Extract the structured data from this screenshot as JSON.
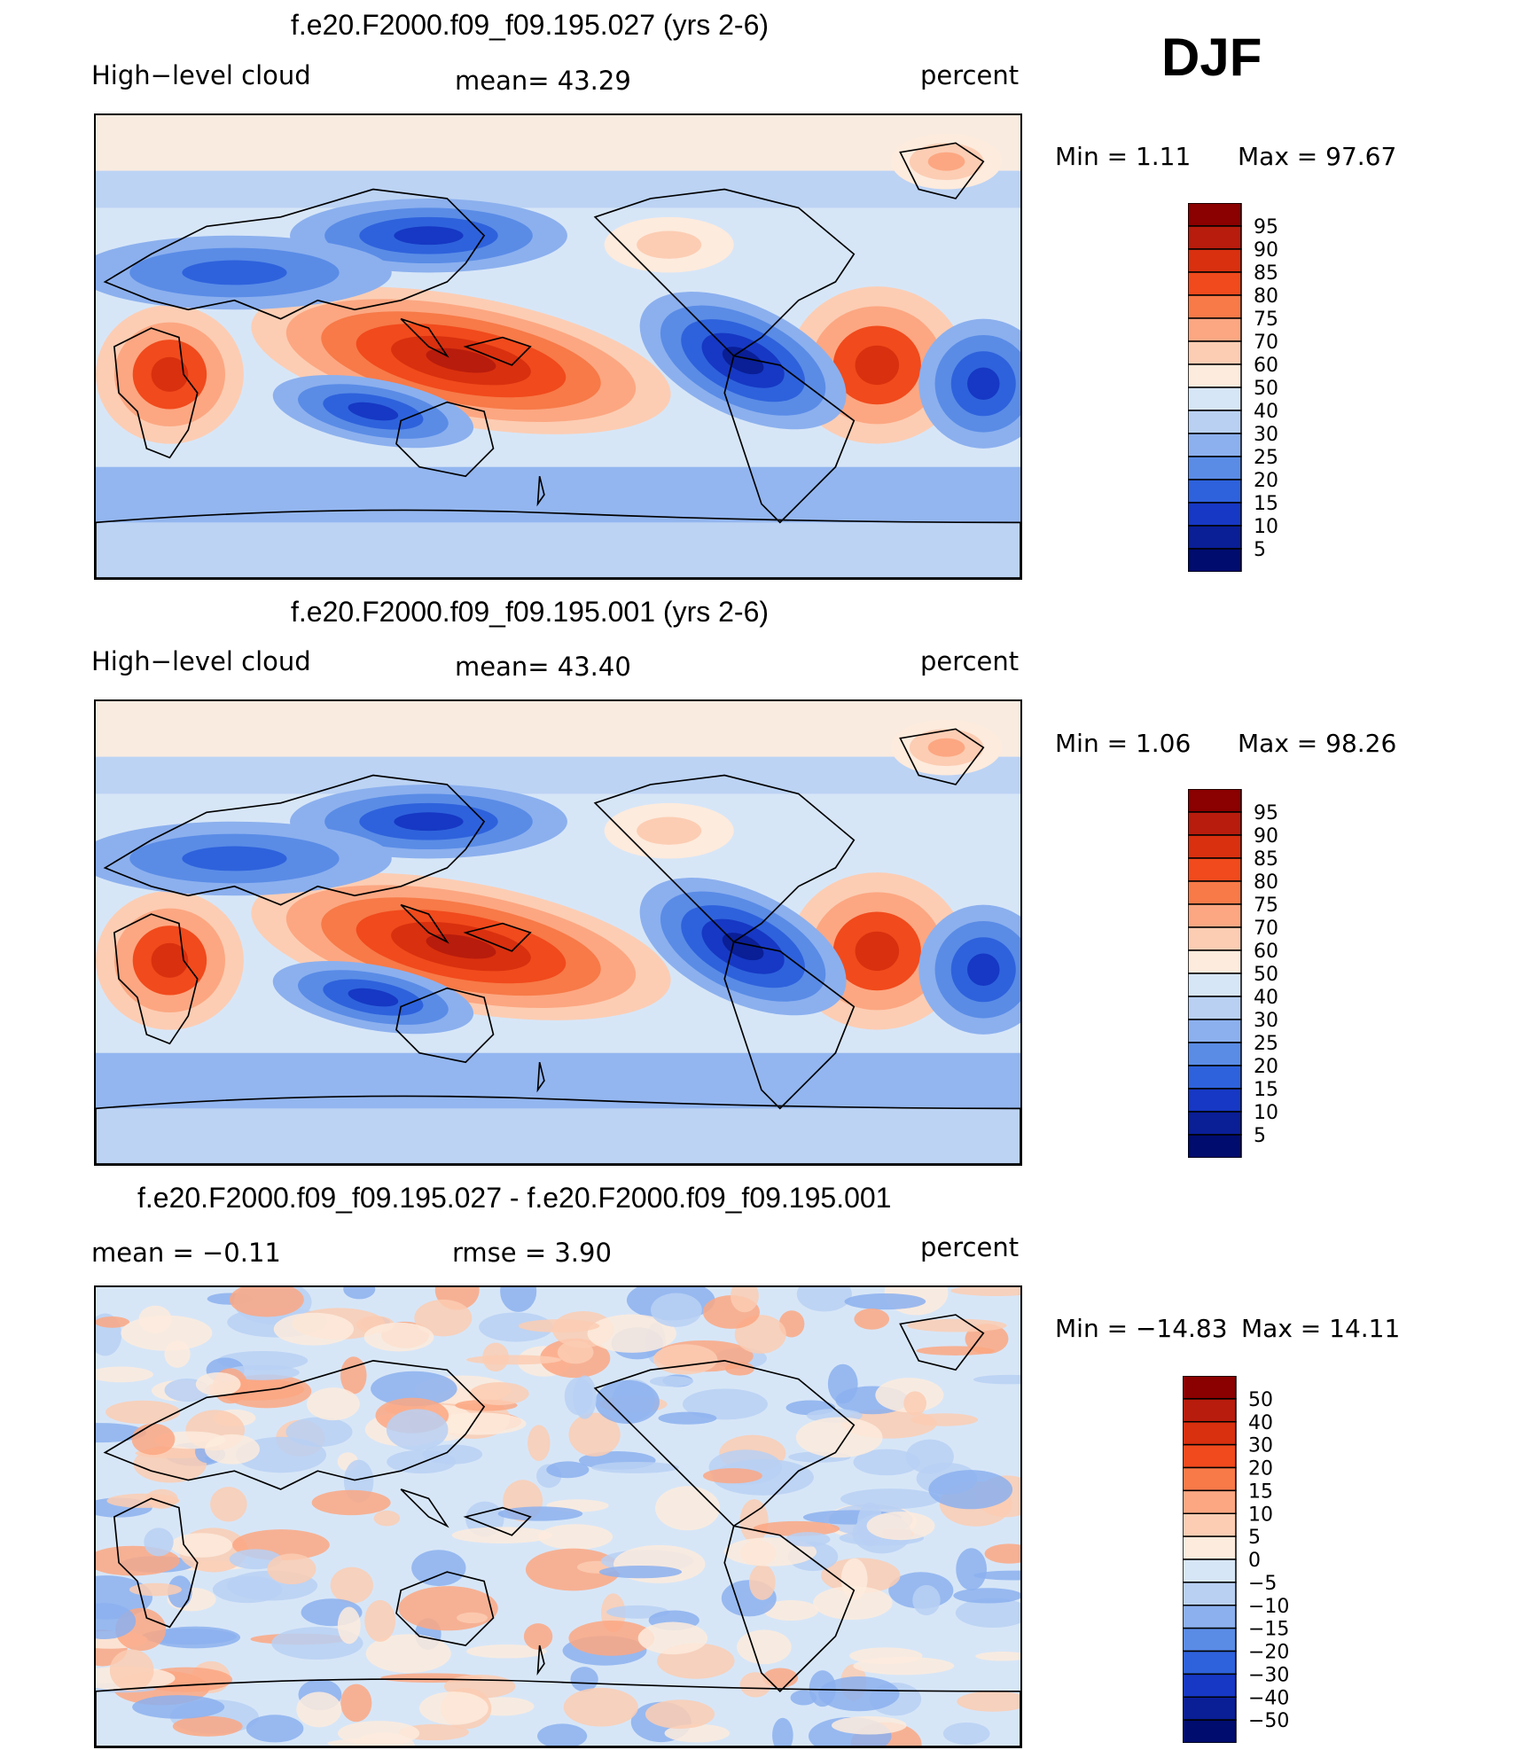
{
  "season": "DJF",
  "panels": [
    {
      "title": "f.e20.F2000.f09_f09.195.027 (yrs 2-6)",
      "variable": "High−level cloud",
      "mean_text": "mean=   43.29",
      "units": "percent",
      "min_text": "Min =    1.11",
      "max_text": "Max =   97.67"
    },
    {
      "title": "f.e20.F2000.f09_f09.195.001 (yrs 2-6)",
      "variable": "High−level cloud",
      "mean_text": "mean=   43.40",
      "units": "percent",
      "min_text": "Min =    1.06",
      "max_text": "Max =   98.26"
    },
    {
      "title": "f.e20.F2000.f09_f09.195.027 - f.e20.F2000.f09_f09.195.001",
      "mean_text": "mean =   −0.11",
      "rmse_text": "rmse =     3.90",
      "units": "percent",
      "min_text": "Min = −14.83",
      "max_text": "Max =   14.11"
    }
  ],
  "chart_data": [
    {
      "type": "heatmap",
      "title": "f.e20.F2000.f09_f09.195.027 (yrs 2-6)",
      "variable": "High-level cloud",
      "units": "percent",
      "mean": 43.29,
      "min": 1.11,
      "max": 97.67,
      "levels": [
        "95",
        "90",
        "85",
        "80",
        "75",
        "70",
        "60",
        "50",
        "40",
        "30",
        "25",
        "20",
        "15",
        "10",
        "5"
      ],
      "colors": [
        "#8b0000",
        "#b81c0c",
        "#d9300f",
        "#f14a1c",
        "#f77a48",
        "#fca782",
        "#fccdb3",
        "#fdebdd",
        "#d7e6f7",
        "#b9d0f3",
        "#8cb0ee",
        "#5a8ce6",
        "#2e62dc",
        "#1638c4",
        "#0a1e96",
        "#000c6e"
      ]
    },
    {
      "type": "heatmap",
      "title": "f.e20.F2000.f09_f09.195.001 (yrs 2-6)",
      "variable": "High-level cloud",
      "units": "percent",
      "mean": 43.4,
      "min": 1.06,
      "max": 98.26,
      "levels": [
        "95",
        "90",
        "85",
        "80",
        "75",
        "70",
        "60",
        "50",
        "40",
        "30",
        "25",
        "20",
        "15",
        "10",
        "5"
      ],
      "colors": [
        "#8b0000",
        "#b81c0c",
        "#d9300f",
        "#f14a1c",
        "#f77a48",
        "#fca782",
        "#fccdb3",
        "#fdebdd",
        "#d7e6f7",
        "#b9d0f3",
        "#8cb0ee",
        "#5a8ce6",
        "#2e62dc",
        "#1638c4",
        "#0a1e96",
        "#000c6e"
      ]
    },
    {
      "type": "heatmap",
      "title": "f.e20.F2000.f09_f09.195.027 - f.e20.F2000.f09_f09.195.001",
      "units": "percent",
      "mean": -0.11,
      "rmse": 3.9,
      "min": -14.83,
      "max": 14.11,
      "levels": [
        "50",
        "40",
        "30",
        "20",
        "15",
        "10",
        "5",
        "0",
        "−5",
        "−10",
        "−15",
        "−20",
        "−30",
        "−40",
        "−50"
      ],
      "colors": [
        "#8b0000",
        "#b81c0c",
        "#d9300f",
        "#f14a1c",
        "#f77a48",
        "#fca782",
        "#fccdb3",
        "#fdebdd",
        "#d7e6f7",
        "#b9d0f3",
        "#8cb0ee",
        "#5a8ce6",
        "#2e62dc",
        "#1638c4",
        "#0a1e96",
        "#000c6e"
      ]
    }
  ]
}
